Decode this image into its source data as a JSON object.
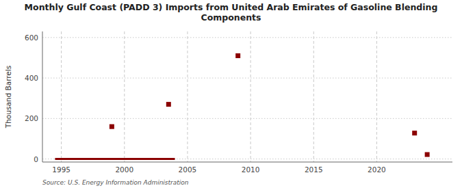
{
  "chart_data": {
    "type": "scatter",
    "title": "Monthly Gulf Coast (PADD 3) Imports from United Arab Emirates of Gasoline Blending\nComponents",
    "ylabel": "Thousand Barrels",
    "annotations": [
      "Source: U.S. Energy Information Administration"
    ],
    "xlim": [
      1993.5,
      2026
    ],
    "ylim": [
      -15,
      630
    ],
    "xticks": [
      1995,
      2000,
      2005,
      2010,
      2015,
      2020
    ],
    "yticks": [
      0,
      200,
      400,
      600
    ],
    "grid": true,
    "series": [
      {
        "type": "line",
        "color": "#8b0000",
        "line_style": "solid",
        "x": [
          1994.5,
          2004.0
        ],
        "values": [
          0,
          0
        ]
      },
      {
        "type": "scatter",
        "color": "#8b0000",
        "marker": "square",
        "x": [
          1999.0,
          2003.5,
          2009.0,
          2023.0,
          2024.0
        ],
        "values": [
          160,
          270,
          510,
          128,
          22
        ]
      }
    ]
  }
}
